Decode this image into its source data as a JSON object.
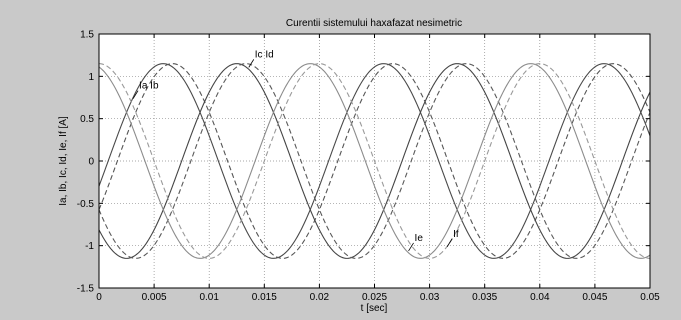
{
  "chart_data": {
    "type": "line",
    "title": "Curentii sistemului haxafazat nesimetric",
    "xlabel": "t [sec]",
    "ylabel": "Ia, Ib, Ic, Id, Ie, If [A]",
    "xlim": [
      0,
      0.05
    ],
    "ylim": [
      -1.5,
      1.5
    ],
    "xticks": [
      0,
      0.005,
      0.01,
      0.015,
      0.02,
      0.025,
      0.03,
      0.035,
      0.04,
      0.045,
      0.05
    ],
    "xtick_labels": [
      "0",
      "0.005",
      "0.01",
      "0.015",
      "0.02",
      "0.025",
      "0.03",
      "0.035",
      "0.04",
      "0.045",
      "0.05"
    ],
    "yticks": [
      -1.5,
      -1,
      -0.5,
      0,
      0.5,
      1,
      1.5
    ],
    "ytick_labels": [
      "-1.5",
      "-1",
      "-0.5",
      "0",
      "0.5",
      "1",
      "1.5"
    ],
    "grid": true,
    "amplitude": 1.15,
    "frequency_hz": 50,
    "series": [
      {
        "name": "Ia",
        "phase_deg": -15,
        "color": "#4a4a4a",
        "dash": "none"
      },
      {
        "name": "Ib",
        "phase_deg": -30,
        "color": "#555555",
        "dash": "5,3"
      },
      {
        "name": "Ic",
        "phase_deg": -135,
        "color": "#454545",
        "dash": "none"
      },
      {
        "name": "Id",
        "phase_deg": -150,
        "color": "#5a5a5a",
        "dash": "5,3"
      },
      {
        "name": "Ie",
        "phase_deg": 105,
        "color": "#8c8c8c",
        "dash": "none"
      },
      {
        "name": "If",
        "phase_deg": 90,
        "color": "#9a9a9a",
        "dash": "5,3"
      }
    ],
    "annotations": [
      {
        "text": "Ia Ib",
        "series": "Ia",
        "x": 0.003
      },
      {
        "text": "Ic  Id",
        "series": "Ic",
        "x": 0.0135
      },
      {
        "text": "Ie",
        "series": "Ie",
        "x": 0.028
      },
      {
        "text": "If",
        "series": "If",
        "x": 0.0315
      }
    ]
  }
}
